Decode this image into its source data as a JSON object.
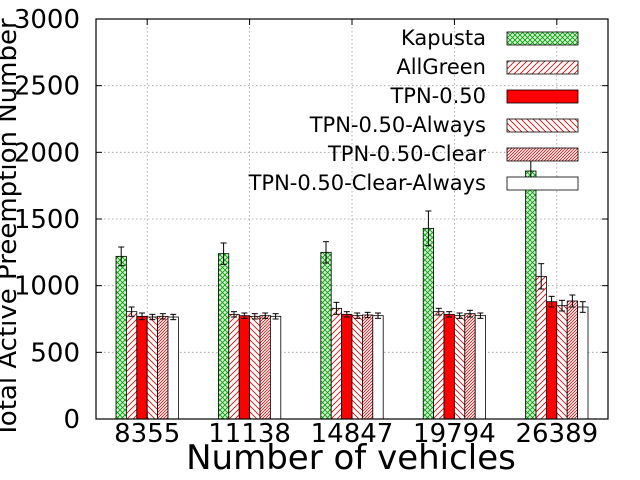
{
  "chart_data": {
    "type": "bar",
    "title": "",
    "xlabel": "Number of vehicles",
    "ylabel": "Total Active Preemption Number",
    "categories": [
      "8355",
      "11138",
      "14847",
      "19794",
      "26389"
    ],
    "ylim": [
      0,
      3000
    ],
    "yticks": [
      0,
      500,
      1000,
      1500,
      2000,
      2500,
      3000
    ],
    "grid": true,
    "legend_position": "top-right",
    "series": [
      {
        "name": "Kapusta",
        "fill": "crosshatch",
        "color": "#00a000",
        "values": [
          1220,
          1240,
          1250,
          1430,
          1860
        ],
        "errors": [
          70,
          80,
          80,
          130,
          120
        ]
      },
      {
        "name": "AllGreen",
        "fill": "diagonal-lines",
        "color": "#d01010",
        "values": [
          805,
          785,
          830,
          805,
          1070
        ],
        "errors": [
          35,
          20,
          45,
          25,
          95
        ]
      },
      {
        "name": "TPN-0.50",
        "fill": "solid",
        "color": "#ff0000",
        "values": [
          770,
          775,
          785,
          785,
          880
        ],
        "errors": [
          25,
          20,
          20,
          20,
          40
        ]
      },
      {
        "name": "TPN-0.50-Always",
        "fill": "sparse-diagonal-lines",
        "color": "#d01010",
        "values": [
          765,
          770,
          775,
          775,
          850
        ],
        "errors": [
          20,
          20,
          20,
          20,
          40
        ]
      },
      {
        "name": "TPN-0.50-Clear",
        "fill": "dense-diagonal-lines",
        "color": "#d01010",
        "values": [
          770,
          775,
          780,
          790,
          885
        ],
        "errors": [
          20,
          20,
          20,
          25,
          45
        ]
      },
      {
        "name": "TPN-0.50-Clear-Always",
        "fill": "empty",
        "color": "#000000",
        "values": [
          765,
          770,
          775,
          775,
          840
        ],
        "errors": [
          20,
          20,
          20,
          20,
          40
        ]
      }
    ]
  }
}
